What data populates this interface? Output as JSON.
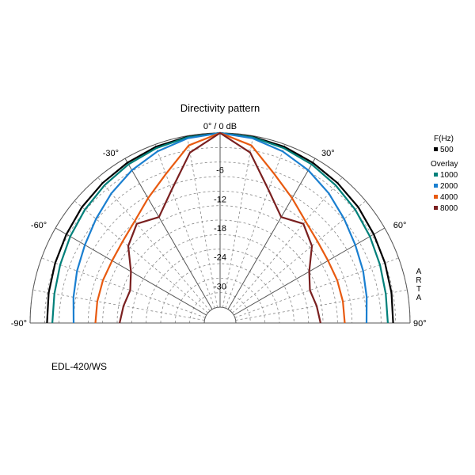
{
  "chart_data": {
    "type": "polar",
    "title": "Directivity pattern",
    "top_label": "0° / 0 dB",
    "angle_ticks": [
      {
        "angle": -90,
        "label": "-90°"
      },
      {
        "angle": -60,
        "label": "-60°"
      },
      {
        "angle": -30,
        "label": "-30°"
      },
      {
        "angle": 30,
        "label": "30°"
      },
      {
        "angle": 60,
        "label": "60°"
      },
      {
        "angle": 90,
        "label": "90°"
      }
    ],
    "angle_range": [
      -90,
      90
    ],
    "radial_range_db": [
      -36,
      0
    ],
    "radial_ticks": [
      {
        "value": -6,
        "label": "-6"
      },
      {
        "value": -12,
        "label": "-12"
      },
      {
        "value": -18,
        "label": "-18"
      },
      {
        "value": -24,
        "label": "-24"
      },
      {
        "value": -30,
        "label": "-30"
      }
    ],
    "grid": true,
    "legend_position": "right",
    "legend_header": "F(Hz)",
    "legend_overlay_header": "Overlay",
    "angles": [
      0,
      10,
      20,
      30,
      40,
      50,
      60,
      70,
      80,
      90
    ],
    "series": [
      {
        "name": "500",
        "color": "#000000",
        "db": [
          0,
          -0.2,
          -0.5,
          -1.0,
          -1.5,
          -2.0,
          -2.6,
          -3.0,
          -3.3,
          -3.5
        ]
      },
      {
        "name": "1000",
        "color": "#00807a",
        "db": [
          0,
          -0.3,
          -0.8,
          -1.4,
          -2.1,
          -2.8,
          -3.5,
          -4.1,
          -4.5,
          -4.6
        ]
      },
      {
        "name": "2000",
        "color": "#1a7fd0",
        "db": [
          0,
          -0.5,
          -1.5,
          -2.8,
          -4.3,
          -5.8,
          -7.0,
          -7.8,
          -8.5,
          -9.0
        ]
      },
      {
        "name": "4000",
        "color": "#e85a10",
        "db": [
          0,
          -2.0,
          -6.5,
          -9.5,
          -11.8,
          -13.0,
          -13.5,
          -13.5,
          -13.5,
          -13.5
        ]
      },
      {
        "name": "8000",
        "color": "#7a2020",
        "db": [
          0,
          -3.5,
          -10.0,
          -14.0,
          -12.5,
          -14.5,
          -18.0,
          -19.5,
          -19.0,
          -18.5
        ]
      }
    ]
  },
  "footer": {
    "model": "EDL-420/WS",
    "watermark": [
      "A",
      "R",
      "T",
      "A"
    ]
  }
}
